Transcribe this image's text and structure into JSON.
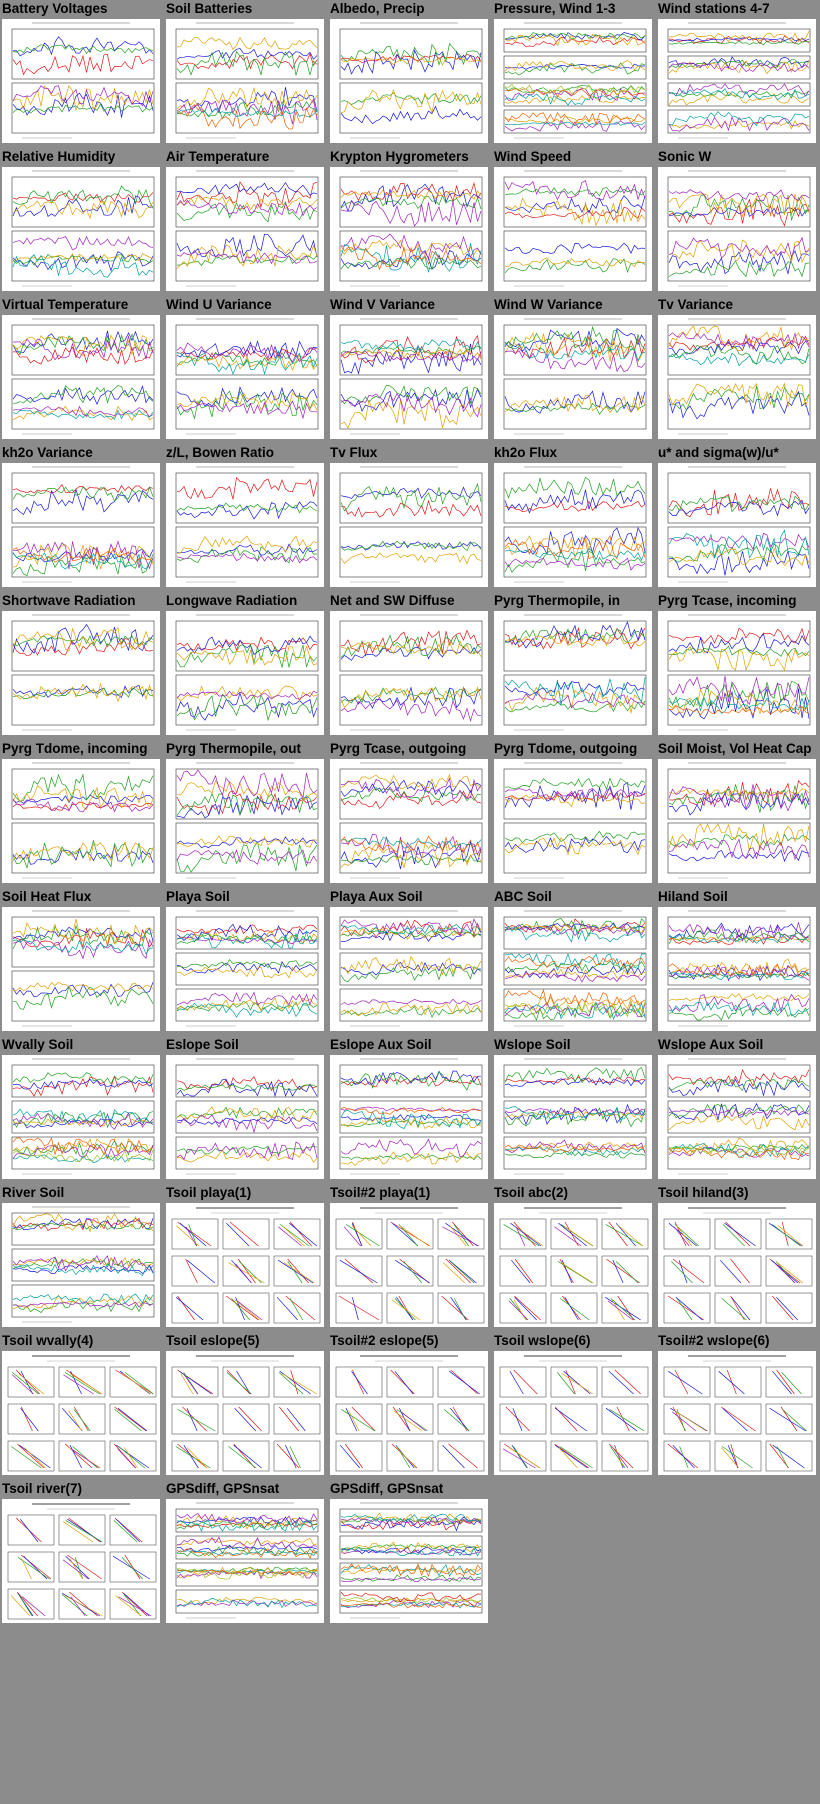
{
  "page": {
    "background": "#8c8c8c",
    "palette": [
      "#e01818",
      "#1818e0",
      "#20a020",
      "#e0a000",
      "#a020c0",
      "#00a0a0",
      "#f06000",
      "#a0c020"
    ]
  },
  "thumbnails": [
    {
      "title": "Battery Voltages",
      "kind": "plot",
      "panels": 2
    },
    {
      "title": "Soil Batteries",
      "kind": "plot",
      "panels": 2
    },
    {
      "title": "Albedo, Precip",
      "kind": "plot",
      "panels": 2
    },
    {
      "title": "Pressure, Wind 1-3",
      "kind": "plot",
      "panels": 4
    },
    {
      "title": "Wind stations 4-7",
      "kind": "plot",
      "panels": 4
    },
    {
      "title": "Relative Humidity",
      "kind": "plot",
      "panels": 2
    },
    {
      "title": "Air Temperature",
      "kind": "plot",
      "panels": 2
    },
    {
      "title": "Krypton Hygrometers",
      "kind": "plot",
      "panels": 2
    },
    {
      "title": "Wind Speed",
      "kind": "plot",
      "panels": 2
    },
    {
      "title": "Sonic W",
      "kind": "plot",
      "panels": 2
    },
    {
      "title": "Virtual Temperature",
      "kind": "plot",
      "panels": 2
    },
    {
      "title": "Wind U Variance",
      "kind": "plot",
      "panels": 2
    },
    {
      "title": "Wind V Variance",
      "kind": "plot",
      "panels": 2
    },
    {
      "title": "Wind W Variance",
      "kind": "plot",
      "panels": 2
    },
    {
      "title": "Tv Variance",
      "kind": "plot",
      "panels": 2
    },
    {
      "title": "kh2o Variance",
      "kind": "plot",
      "panels": 2
    },
    {
      "title": "z/L, Bowen Ratio",
      "kind": "plot",
      "panels": 2
    },
    {
      "title": "Tv Flux",
      "kind": "plot",
      "panels": 2
    },
    {
      "title": "kh2o Flux",
      "kind": "plot",
      "panels": 2
    },
    {
      "title": "u* and sigma(w)/u*",
      "kind": "plot",
      "panels": 2
    },
    {
      "title": "Shortwave Radiation",
      "kind": "plot",
      "panels": 2
    },
    {
      "title": "Longwave Radiation",
      "kind": "plot",
      "panels": 2
    },
    {
      "title": "Net and SW Diffuse",
      "kind": "plot",
      "panels": 2
    },
    {
      "title": "Pyrg Thermopile, in",
      "kind": "plot",
      "panels": 2
    },
    {
      "title": "Pyrg Tcase, incoming",
      "kind": "plot",
      "panels": 2
    },
    {
      "title": "Pyrg Tdome, incoming",
      "kind": "plot",
      "panels": 2
    },
    {
      "title": "Pyrg Thermopile, out",
      "kind": "plot",
      "panels": 2
    },
    {
      "title": "Pyrg Tcase, outgoing",
      "kind": "plot",
      "panels": 2
    },
    {
      "title": "Pyrg Tdome, outgoing",
      "kind": "plot",
      "panels": 2
    },
    {
      "title": "Soil Moist, Vol Heat Cap",
      "kind": "plot",
      "panels": 2
    },
    {
      "title": "Soil Heat Flux",
      "kind": "plot",
      "panels": 2
    },
    {
      "title": "Playa Soil",
      "kind": "plot",
      "panels": 3
    },
    {
      "title": "Playa Aux Soil",
      "kind": "plot",
      "panels": 3
    },
    {
      "title": "ABC Soil",
      "kind": "plot",
      "panels": 3
    },
    {
      "title": "Hiland Soil",
      "kind": "plot",
      "panels": 3
    },
    {
      "title": "Wvally Soil",
      "kind": "plot",
      "panels": 3
    },
    {
      "title": "Eslope Soil",
      "kind": "plot",
      "panels": 3
    },
    {
      "title": "Eslope Aux Soil",
      "kind": "plot",
      "panels": 3
    },
    {
      "title": "Wslope Soil",
      "kind": "plot",
      "panels": 3
    },
    {
      "title": "Wslope Aux Soil",
      "kind": "plot",
      "panels": 3
    },
    {
      "title": "River Soil",
      "kind": "plot",
      "panels": 3
    },
    {
      "title": "Tsoil playa(1)",
      "kind": "profile"
    },
    {
      "title": "Tsoil#2 playa(1)",
      "kind": "profile"
    },
    {
      "title": "Tsoil abc(2)",
      "kind": "profile"
    },
    {
      "title": "Tsoil hiland(3)",
      "kind": "profile"
    },
    {
      "title": "Tsoil wvally(4)",
      "kind": "profile"
    },
    {
      "title": "Tsoil eslope(5)",
      "kind": "profile"
    },
    {
      "title": "Tsoil#2 eslope(5)",
      "kind": "profile"
    },
    {
      "title": "Tsoil wslope(6)",
      "kind": "profile"
    },
    {
      "title": "Tsoil#2 wslope(6)",
      "kind": "profile"
    },
    {
      "title": "Tsoil river(7)",
      "kind": "profile"
    },
    {
      "title": "GPSdiff, GPSnsat",
      "kind": "plot",
      "panels": 4
    },
    {
      "title": "GPSdiff, GPSnsat",
      "kind": "plot",
      "panels": 4
    }
  ]
}
